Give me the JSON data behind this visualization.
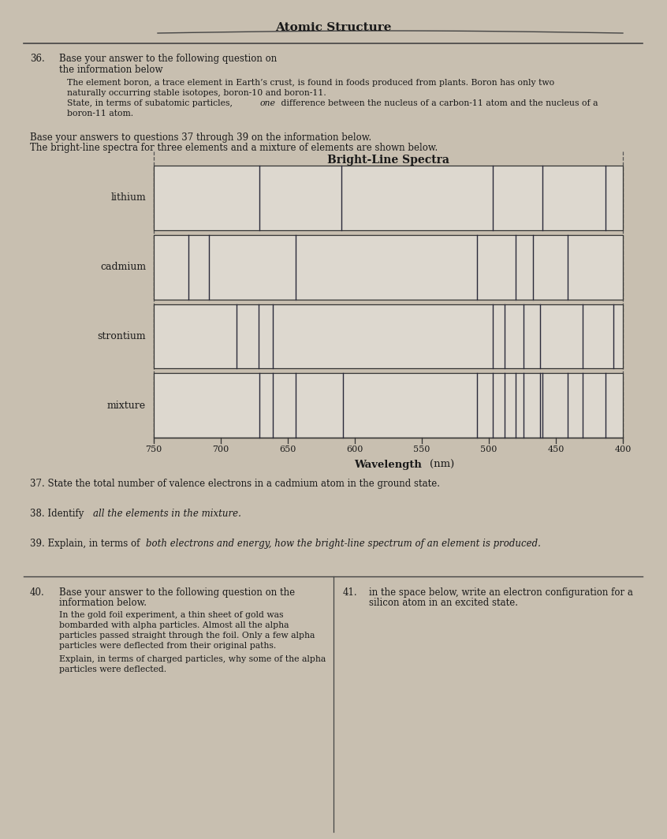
{
  "title": "Atomic Structure",
  "bg_color": "#c8bfb0",
  "text_color": "#1a1a1a",
  "elements": [
    "lithium",
    "cadmium",
    "strontium",
    "mixture"
  ],
  "wavelength_min": 400,
  "wavelength_max": 750,
  "wavelength_ticks": [
    750,
    700,
    650,
    600,
    550,
    500,
    450,
    400
  ],
  "lithium_lines": [
    671,
    610,
    497,
    460,
    413
  ],
  "cadmium_lines": [
    724,
    709,
    644,
    509,
    480,
    467,
    441
  ],
  "strontium_lines": [
    688,
    672,
    661,
    497,
    488,
    474,
    462,
    430,
    407
  ],
  "mixture_lines": [
    671,
    661,
    644,
    609,
    509,
    497,
    488,
    480,
    474,
    462,
    460,
    441,
    430,
    413
  ],
  "line_color": "#2a2a3a",
  "band_color": "#ddd8cf",
  "spectra_title": "Bright-Line Spectra",
  "xlabel_bold": "Wavelength",
  "xlabel_normal": " (nm)"
}
